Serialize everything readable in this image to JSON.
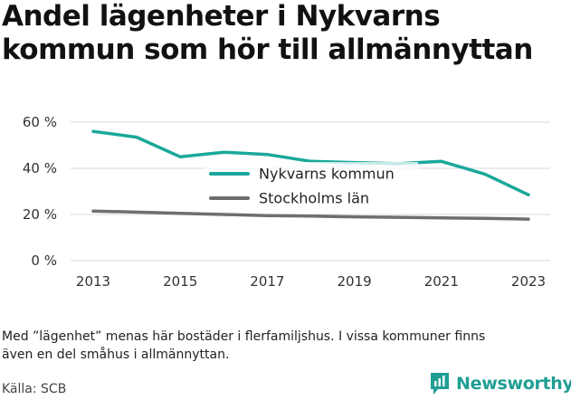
{
  "header": {
    "title_line1": "Andel lägenheter i Nykvarns",
    "title_line2": "kommun som hör till allmännyttan"
  },
  "footer": {
    "note_line1": "Med ”lägenhet” menas här bostäder i flerfamiljshus. I vissa kommuner finns",
    "note_line2": "även en del småhus i allmännyttan.",
    "source": "Källa: SCB",
    "brand": "Newsworthy"
  },
  "colors": {
    "nykvarn": "#1aa89a",
    "stockholm": "#6e6e6e",
    "grid": "#d9d9d9",
    "brand": "#1f9e93"
  },
  "chart_data": {
    "type": "line",
    "x": [
      2013,
      2014,
      2015,
      2016,
      2017,
      2018,
      2019,
      2020,
      2021,
      2022,
      2023
    ],
    "x_tick_labels": [
      "2013",
      "2015",
      "2017",
      "2019",
      "2021",
      "2023"
    ],
    "y_tick_labels": [
      "0 %",
      "20 %",
      "40 %",
      "60 %"
    ],
    "ylim": [
      0,
      60
    ],
    "grid": true,
    "legend_position": "center",
    "series": [
      {
        "name": "Nykvarns kommun",
        "values": [
          56,
          53.5,
          45,
          47,
          46,
          43,
          42.5,
          42,
          43,
          37.5,
          28.5
        ]
      },
      {
        "name": "Stockholms län",
        "values": [
          21.5,
          21,
          20.5,
          20,
          19.5,
          19.3,
          19,
          18.8,
          18.5,
          18.3,
          18
        ]
      }
    ]
  }
}
